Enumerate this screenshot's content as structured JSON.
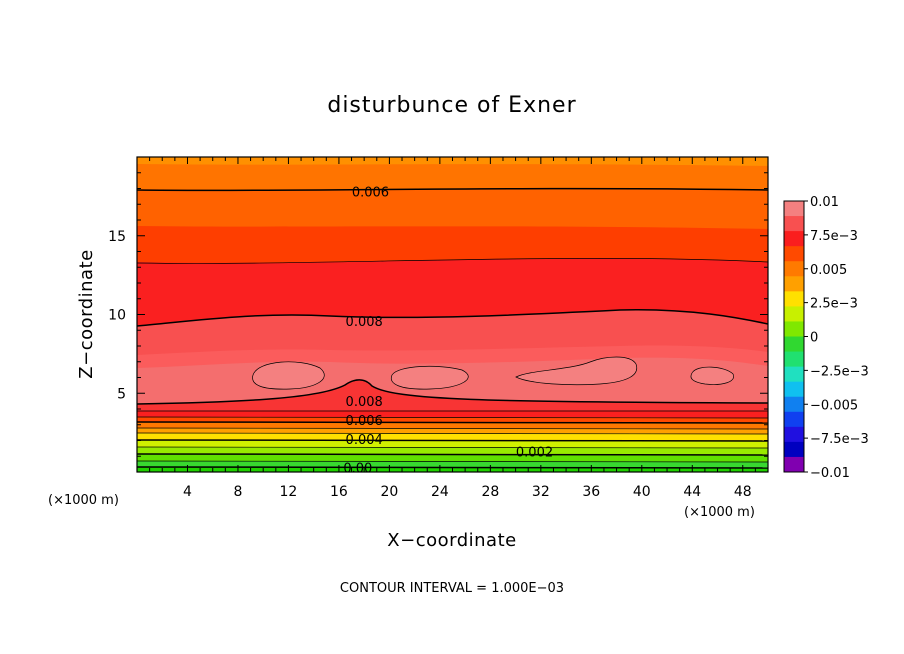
{
  "chart_data": {
    "type": "contour",
    "title": "disturbunce of Exner",
    "xlabel": "X−coordinate",
    "ylabel": "Z−coordinate",
    "x_unit_label": "(×1000 m)",
    "y_unit_label": "(×1000 m)",
    "xlim": [
      0,
      50
    ],
    "ylim": [
      0,
      20
    ],
    "x_ticks": [
      4,
      8,
      12,
      16,
      20,
      24,
      28,
      32,
      36,
      40,
      44,
      48
    ],
    "y_ticks": [
      5,
      10,
      15
    ],
    "contour_interval_text": "CONTOUR INTERVAL = 1.000E−03",
    "contour_labels": [
      {
        "text": "0.006",
        "x": 18.5,
        "z": 17.8
      },
      {
        "text": "0.008",
        "x": 18.0,
        "z": 9.6
      },
      {
        "text": "0.008",
        "x": 18.0,
        "z": 4.5
      },
      {
        "text": "0.006",
        "x": 18.0,
        "z": 3.3
      },
      {
        "text": "0.004",
        "x": 18.0,
        "z": 2.1
      },
      {
        "text": "0.002",
        "x": 31.5,
        "z": 1.3
      },
      {
        "text": "0.00",
        "x": 17.5,
        "z": 0.3
      }
    ],
    "colorbar": {
      "labels": [
        "0.01",
        "7.5e−3",
        "0.005",
        "2.5e−3",
        "0",
        "−2.5e−3",
        "−0.005",
        "−7.5e−3",
        "−0.01"
      ],
      "range": [
        -0.01,
        0.01
      ],
      "colors": [
        "#f48080",
        "#f85050",
        "#fa1e1e",
        "#ff4a00",
        "#ff7a00",
        "#ffa000",
        "#ffe000",
        "#c8f000",
        "#80e800",
        "#30d830",
        "#20e070",
        "#20e0c0",
        "#10c0f0",
        "#1080f0",
        "#1040f0",
        "#2010e0",
        "#0000c0",
        "#8000b0"
      ]
    },
    "contour_levels": [
      0.0,
      0.002,
      0.004,
      0.006,
      0.008
    ]
  }
}
